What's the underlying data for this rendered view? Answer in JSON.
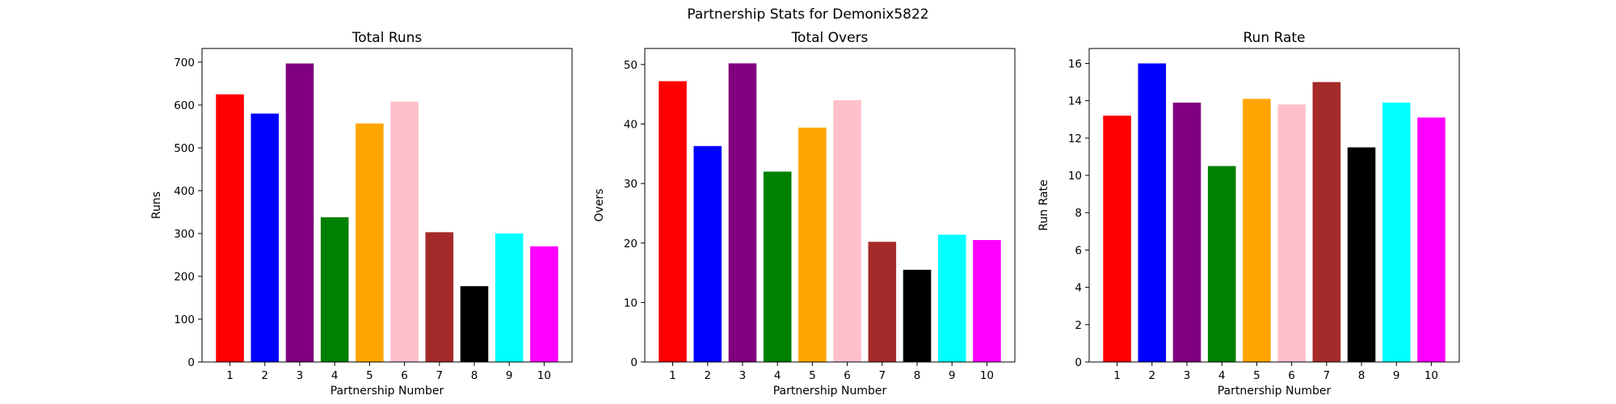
{
  "figure": {
    "suptitle": "Partnership Stats for Demonix5822"
  },
  "colors": [
    "#ff0000",
    "#0000ff",
    "#800080",
    "#008000",
    "#ffa500",
    "#ffc0cb",
    "#a52a2a",
    "#000000",
    "#00ffff",
    "#ff00ff"
  ],
  "chart_data": [
    {
      "type": "bar",
      "title": "Total Runs",
      "xlabel": "Partnership Number",
      "ylabel": "Runs",
      "categories": [
        "1",
        "2",
        "3",
        "4",
        "5",
        "6",
        "7",
        "8",
        "9",
        "10"
      ],
      "values": [
        625,
        580,
        697,
        338,
        557,
        608,
        303,
        177,
        300,
        270
      ],
      "ylim": [
        0,
        732
      ],
      "yticks": [
        0,
        100,
        200,
        300,
        400,
        500,
        600,
        700
      ]
    },
    {
      "type": "bar",
      "title": "Total Overs",
      "xlabel": "Partnership Number",
      "ylabel": "Overs",
      "categories": [
        "1",
        "2",
        "3",
        "4",
        "5",
        "6",
        "7",
        "8",
        "9",
        "10"
      ],
      "values": [
        47.2,
        36.3,
        50.2,
        32.0,
        39.4,
        44.0,
        20.2,
        15.5,
        21.4,
        20.5
      ],
      "ylim": [
        0,
        52.7
      ],
      "yticks": [
        0,
        10,
        20,
        30,
        40,
        50
      ]
    },
    {
      "type": "bar",
      "title": "Run Rate",
      "xlabel": "Partnership Number",
      "ylabel": "Run Rate",
      "categories": [
        "1",
        "2",
        "3",
        "4",
        "5",
        "6",
        "7",
        "8",
        "9",
        "10"
      ],
      "values": [
        13.2,
        16.0,
        13.9,
        10.5,
        14.1,
        13.8,
        15.0,
        11.5,
        13.9,
        13.1
      ],
      "ylim": [
        0,
        16.8
      ],
      "yticks": [
        0,
        2,
        4,
        6,
        8,
        10,
        12,
        14,
        16
      ]
    }
  ]
}
